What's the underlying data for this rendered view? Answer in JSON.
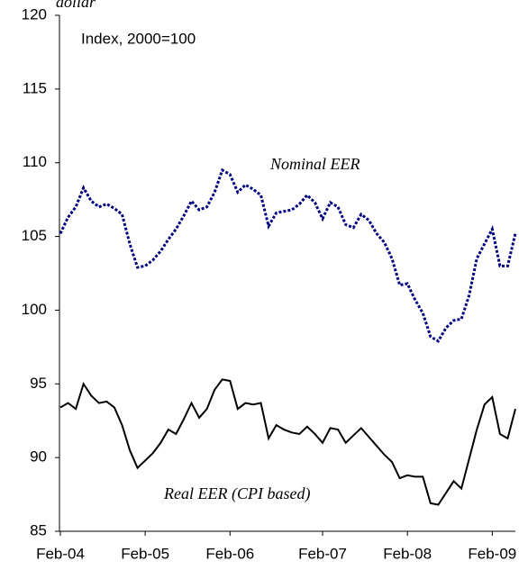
{
  "chart_data": {
    "type": "line",
    "title": "dollar",
    "annotations": [
      "Index, 2000=100",
      "Nominal EER",
      "Real EER (CPI based)"
    ],
    "xlim": [
      0,
      59
    ],
    "xticks": [
      {
        "value": 0,
        "label": "Feb-04"
      },
      {
        "value": 11,
        "label": "Feb-05"
      },
      {
        "value": 22,
        "label": "Feb-06"
      },
      {
        "value": 34,
        "label": "Feb-07"
      },
      {
        "value": 45,
        "label": "Feb-08"
      },
      {
        "value": 56,
        "label": "Feb-09"
      }
    ],
    "ylim": [
      85,
      120
    ],
    "yticks": [
      85,
      90,
      95,
      100,
      105,
      110,
      115,
      120
    ],
    "series": [
      {
        "name": "Nominal EER",
        "color": "#000080",
        "dash": true,
        "values": [
          105.2,
          106.3,
          107,
          108.3,
          107.4,
          107,
          107.2,
          106.9,
          106.5,
          104.5,
          102.9,
          103,
          103.4,
          104,
          104.8,
          105.5,
          106.4,
          107.4,
          106.8,
          107,
          108,
          109.5,
          109.2,
          108,
          108.5,
          108.2,
          107.8,
          105.7,
          106.6,
          106.7,
          106.8,
          107.2,
          107.8,
          107.3,
          106.2,
          107.3,
          107,
          105.8,
          105.6,
          106.5,
          106.1,
          105.2,
          104.6,
          103.5,
          101.7,
          101.8,
          100.7,
          99.8,
          98.2,
          97.9,
          98.8,
          99.3,
          99.4,
          101,
          103.5,
          104.5,
          105.5,
          103,
          103,
          105.2
        ]
      },
      {
        "name": "Real EER (CPI based)",
        "color": "#000000",
        "dash": false,
        "values": [
          93.4,
          93.7,
          93.3,
          95,
          94.2,
          93.7,
          93.8,
          93.4,
          92.2,
          90.5,
          89.3,
          89.8,
          90.3,
          91,
          91.9,
          91.6,
          92.6,
          93.7,
          92.7,
          93.3,
          94.6,
          95.3,
          95.2,
          93.3,
          93.7,
          93.6,
          93.7,
          91.3,
          92.2,
          91.9,
          91.7,
          91.6,
          92.1,
          91.6,
          91,
          92,
          91.9,
          91,
          91.5,
          92,
          91.4,
          90.8,
          90.2,
          89.7,
          88.6,
          88.8,
          88.7,
          88.7,
          86.9,
          86.8,
          87.6,
          88.4,
          87.9,
          89.9,
          91.9,
          93.6,
          94.1,
          91.6,
          91.3,
          93.3
        ]
      }
    ]
  }
}
